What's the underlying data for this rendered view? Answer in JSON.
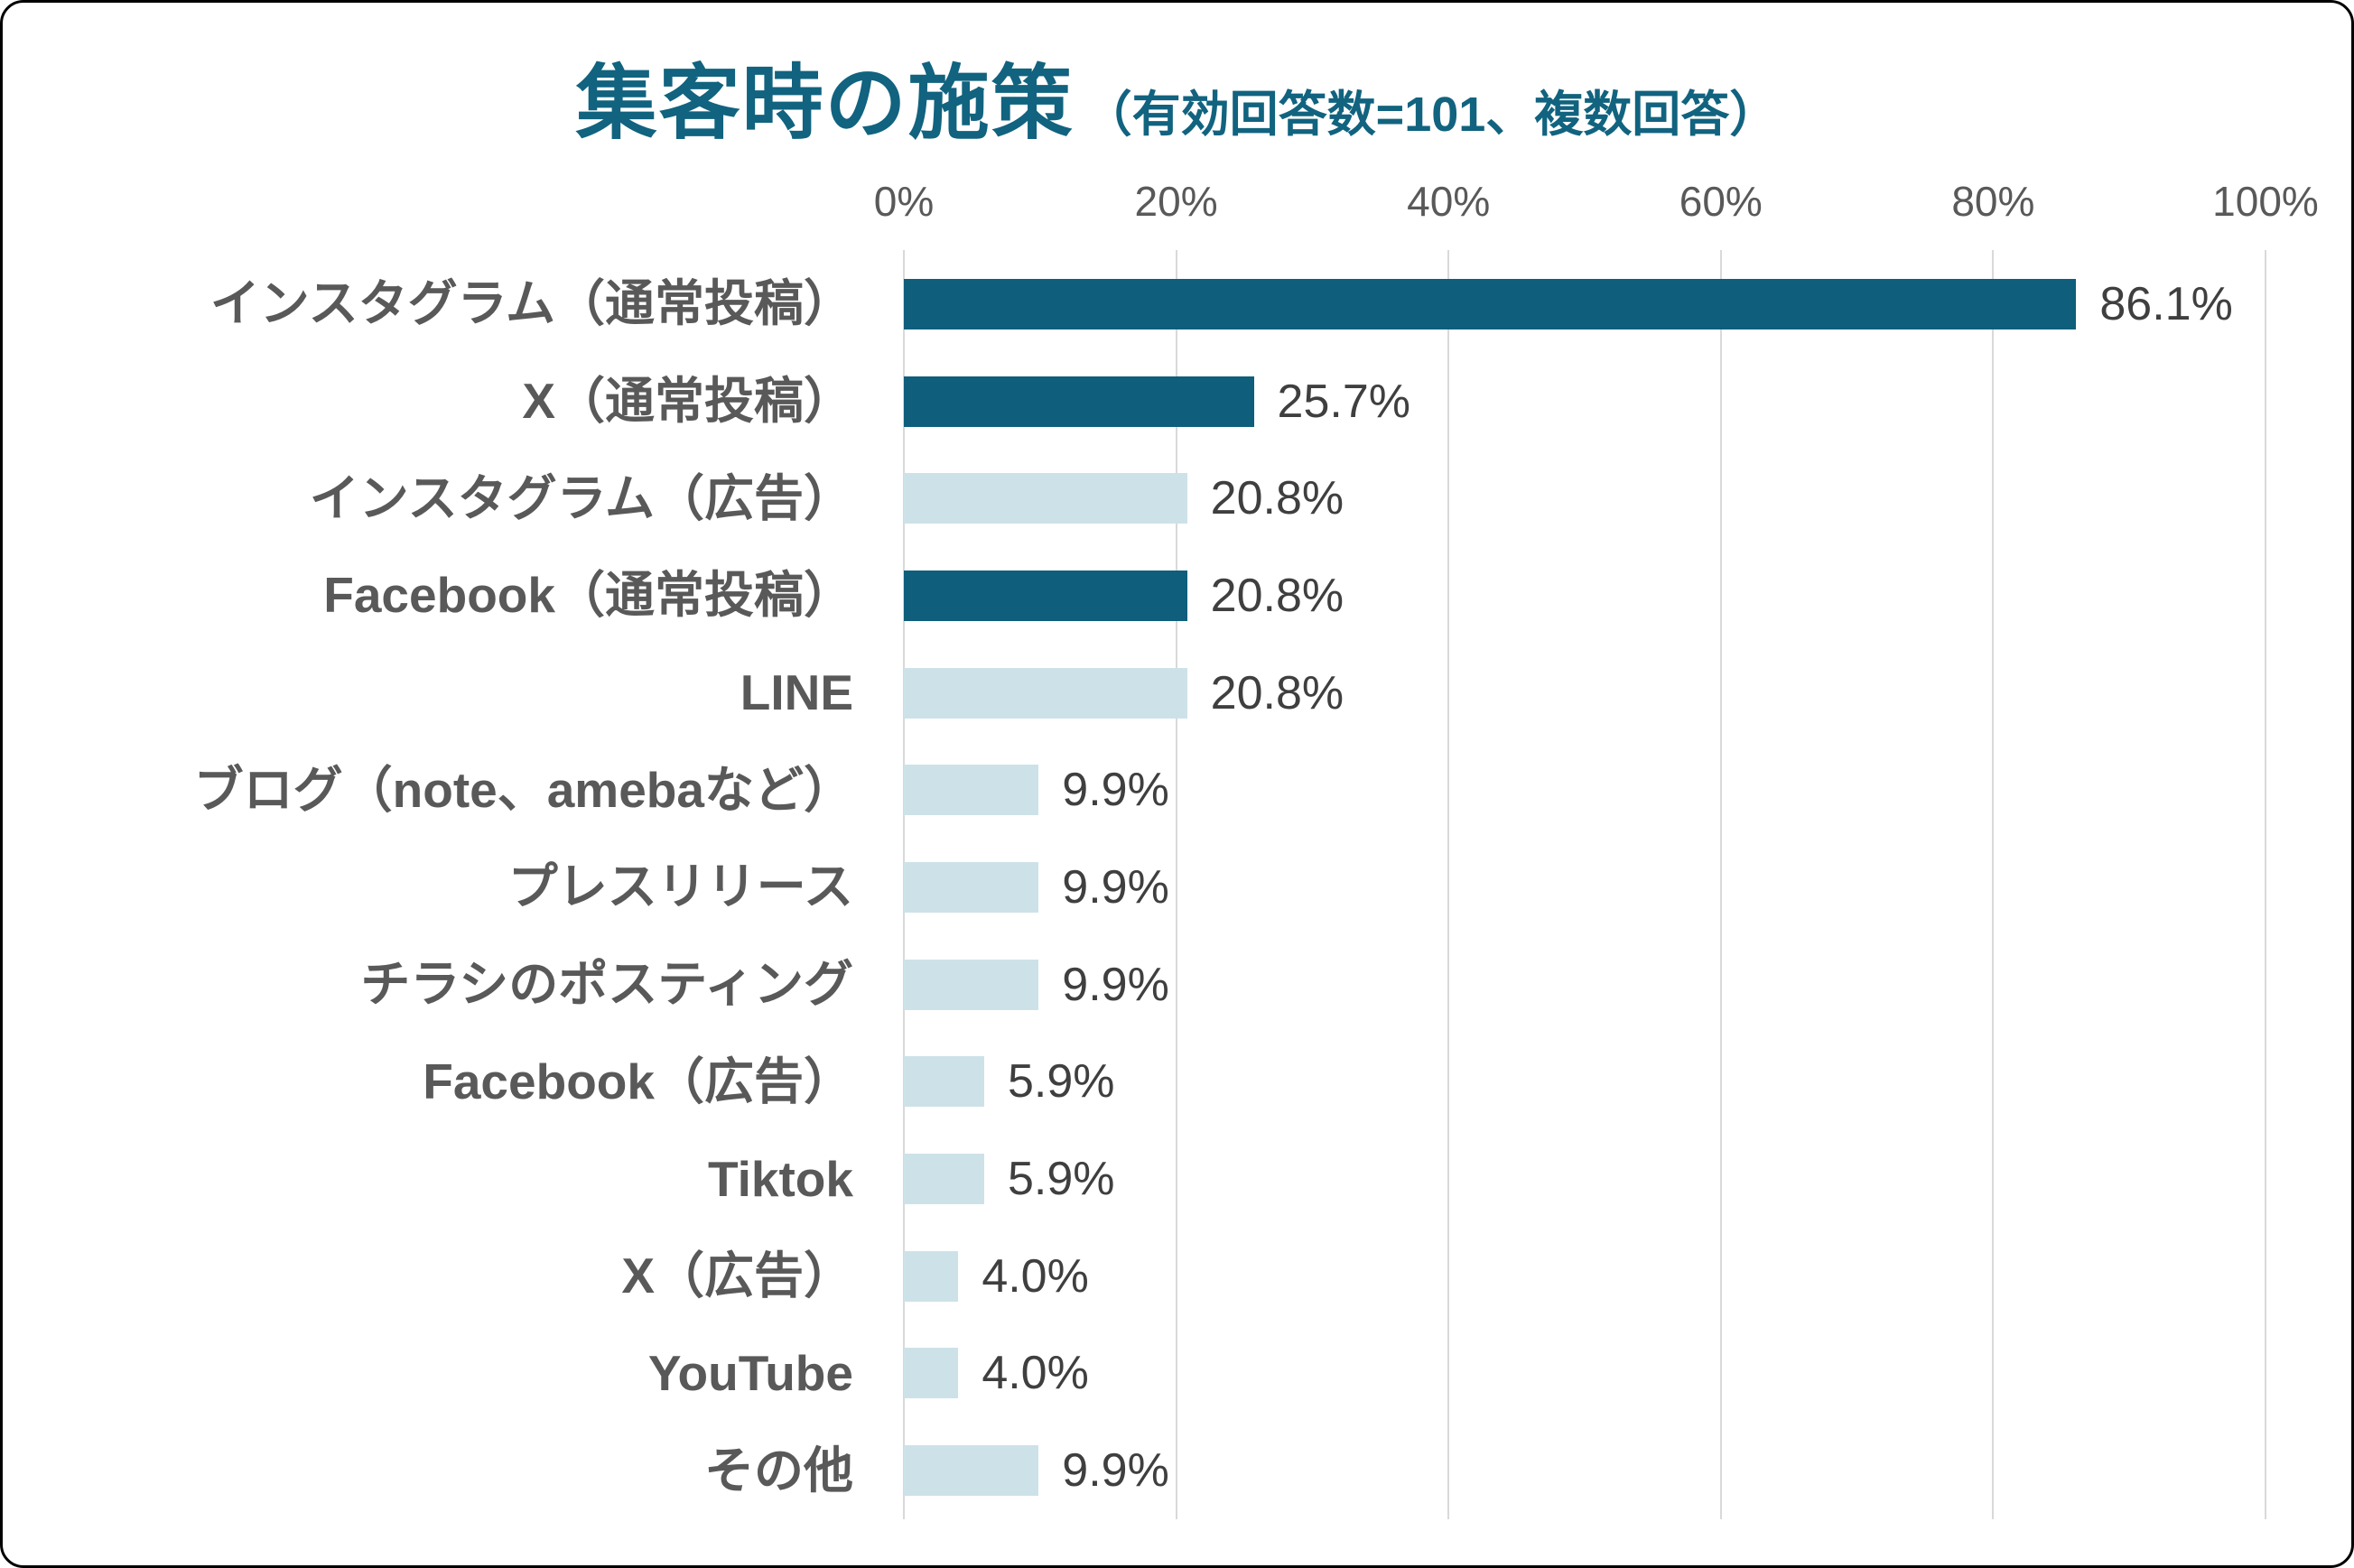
{
  "header": {
    "title": "集客時の施策",
    "subtitle": "（有効回答数=101、複数回答）"
  },
  "colors": {
    "title": "#11637f",
    "bar_dark": "#0e5e7c",
    "bar_light": "#cde2e8",
    "label_gray": "#595959",
    "value_gray": "#3f3f3f",
    "gridline": "#d9d9d9"
  },
  "chart_data": {
    "type": "bar",
    "orientation": "horizontal",
    "title": "集客時の施策（有効回答数=101、複数回答）",
    "valid_responses": 101,
    "multiple_answers": true,
    "xlabel": "",
    "ylabel": "",
    "xlim": [
      0,
      100
    ],
    "x_ticks": [
      "0%",
      "20%",
      "40%",
      "60%",
      "80%",
      "100%"
    ],
    "grid": true,
    "categories": [
      "インスタグラム（通常投稿）",
      "X（通常投稿）",
      "インスタグラム（広告）",
      "Facebook（通常投稿）",
      "LINE",
      "ブログ（note、amebaなど）",
      "プレスリリース",
      "チラシのポスティング",
      "Facebook（広告）",
      "Tiktok",
      "X（広告）",
      "YouTube",
      "その他"
    ],
    "values": [
      86.1,
      25.7,
      20.8,
      20.8,
      20.8,
      9.9,
      9.9,
      9.9,
      5.9,
      5.9,
      4.0,
      4.0,
      9.9
    ],
    "value_labels": [
      "86.1%",
      "25.7%",
      "20.8%",
      "20.8%",
      "20.8%",
      "9.9%",
      "9.9%",
      "9.9%",
      "5.9%",
      "5.9%",
      "4.0%",
      "4.0%",
      "9.9%"
    ],
    "bar_styles": [
      "dark",
      "dark",
      "light",
      "dark",
      "light",
      "light",
      "light",
      "light",
      "light",
      "light",
      "light",
      "light",
      "light"
    ]
  }
}
